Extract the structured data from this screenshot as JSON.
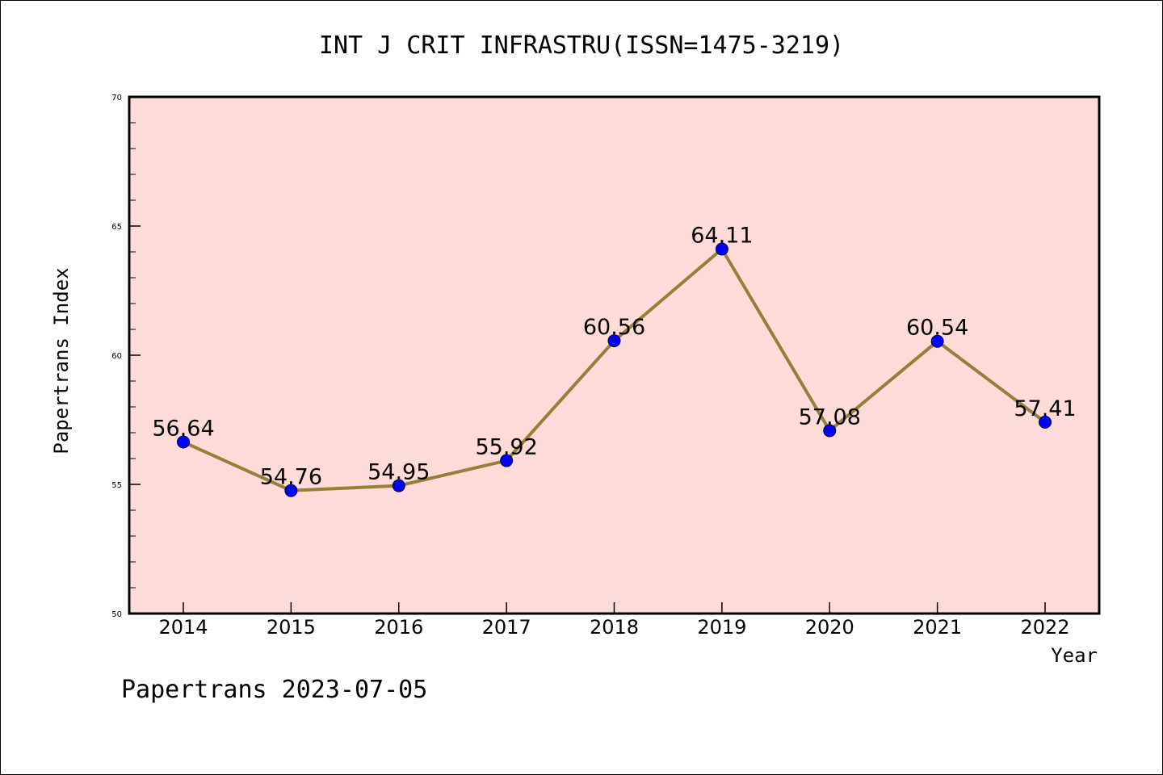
{
  "chart_data": {
    "type": "line",
    "title": "INT J CRIT INFRASTRU(ISSN=1475-3219)",
    "xlabel": "Year",
    "ylabel": "Papertrans Index",
    "categories": [
      "2014",
      "2015",
      "2016",
      "2017",
      "2018",
      "2019",
      "2020",
      "2021",
      "2022"
    ],
    "values": [
      56.64,
      54.76,
      54.95,
      55.92,
      60.56,
      64.11,
      57.08,
      60.54,
      57.41
    ],
    "data_labels": [
      "56.64",
      "54.76",
      "54.95",
      "55.92",
      "60.56",
      "64.11",
      "57.08",
      "60.54",
      "57.41"
    ],
    "ylim": [
      50,
      70
    ],
    "yticks": [
      "50",
      "55",
      "60",
      "65",
      "70"
    ],
    "grid": false,
    "colors": {
      "plot_background": "#fddbd8",
      "line": "#94803a",
      "marker": "#0000ff"
    }
  },
  "footer": {
    "watermark": "Papertrans 2023-07-05"
  }
}
